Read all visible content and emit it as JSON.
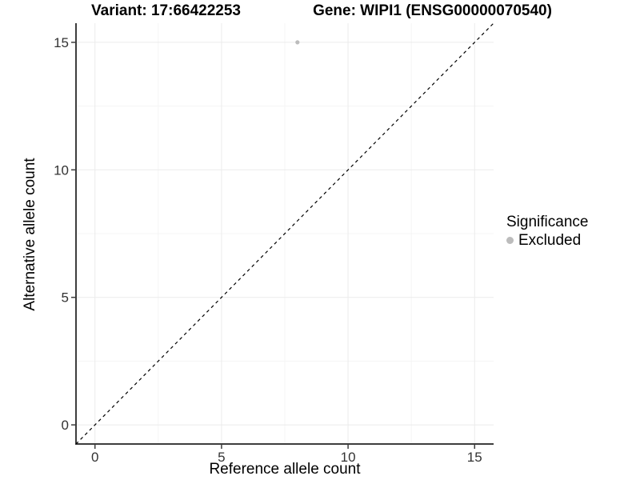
{
  "header": {
    "variant_title": "Variant: 17:66422253",
    "gene_title": "Gene: WIPI1 (ENSG00000070540)"
  },
  "chart_data": {
    "type": "scatter",
    "xlabel": "Reference allele count",
    "ylabel": "Alternative allele count",
    "xlim": [
      0,
      15
    ],
    "ylim": [
      0,
      15
    ],
    "x_ticks": [
      0,
      5,
      10,
      15
    ],
    "y_ticks": [
      0,
      5,
      10,
      15
    ],
    "x_minor_ticks": [
      2.5,
      7.5,
      12.5
    ],
    "y_minor_ticks": [
      2.5,
      7.5,
      12.5
    ],
    "grid": "major and minor gridlines on, white background",
    "points": [
      {
        "x": 8,
        "y": 15,
        "series": "Excluded"
      }
    ],
    "reference_line": {
      "slope": 1,
      "intercept": 0,
      "style": "dashed",
      "color": "#000000"
    },
    "legend": {
      "title": "Significance",
      "position": "right",
      "entries": [
        {
          "label": "Excluded",
          "color": "#bcbcbc"
        }
      ]
    },
    "colors": {
      "grid_major": "#ebebeb",
      "grid_minor": "#f5f5f5",
      "axis_line": "#3d3d3d",
      "tick_mark": "#3d3d3d",
      "tick_label": "#333333",
      "title": "#000000"
    }
  }
}
